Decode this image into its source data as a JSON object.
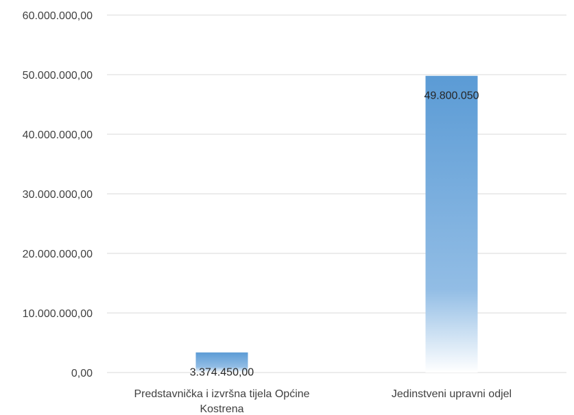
{
  "chart_data": {
    "type": "bar",
    "categories": [
      [
        "Predstavnička i izvršna tijela Općine",
        "Kostrena"
      ],
      [
        "Jedinstveni upravni odjel"
      ]
    ],
    "values": [
      3374450,
      49800050
    ],
    "data_labels": [
      "3.374.450,00",
      "49.800.050"
    ],
    "ylim": [
      0,
      60000000
    ],
    "yticks": [
      0,
      10000000,
      20000000,
      30000000,
      40000000,
      50000000,
      60000000
    ],
    "ytick_labels": [
      "0,00",
      "10.000.000,00",
      "20.000.000,00",
      "30.000.000,00",
      "40.000.000,00",
      "50.000.000,00",
      "60.000.000,00"
    ],
    "grid": true,
    "legend": "none",
    "colors": {
      "bar_top": "#5b9bd5",
      "bar_bottom": "#ffffff"
    }
  }
}
